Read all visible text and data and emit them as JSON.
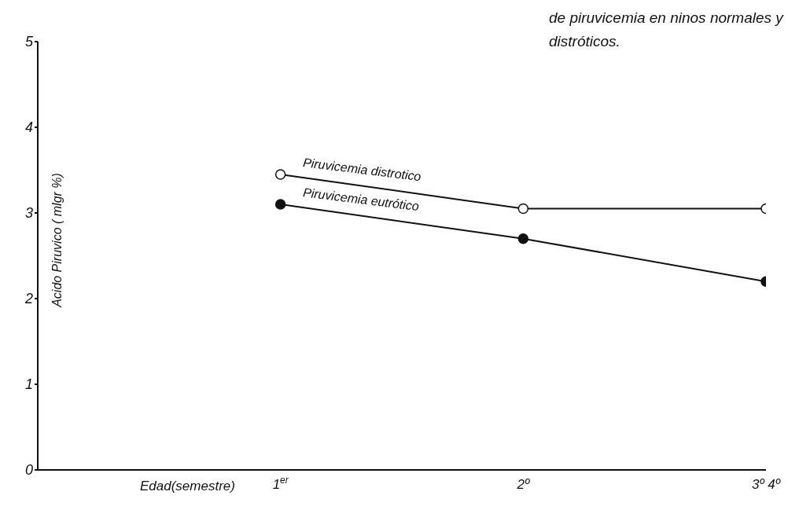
{
  "chart_data": {
    "type": "line",
    "title": "de piruvicemia en ninos normales y distróticos.",
    "xlabel": "Edad(semestre)",
    "ylabel": "Acido Piruvico ( mlgr %)",
    "categories": [
      "1$^{er}$",
      "2º",
      "3º 4º"
    ],
    "series": [
      {
        "name": "Piruvicemia distrotico",
        "color": "#111111",
        "values": [
          3.45,
          3.05,
          3.05
        ]
      },
      {
        "name": "Piruvicemia eutrótico",
        "color": "#111111",
        "values": [
          3.1,
          2.7,
          2.2
        ]
      }
    ],
    "ylim": [
      0,
      5
    ],
    "yticks": [
      0,
      1,
      2,
      3,
      4,
      5
    ],
    "grid": false,
    "legend": false,
    "marker": "circle",
    "line_style": "solid"
  }
}
